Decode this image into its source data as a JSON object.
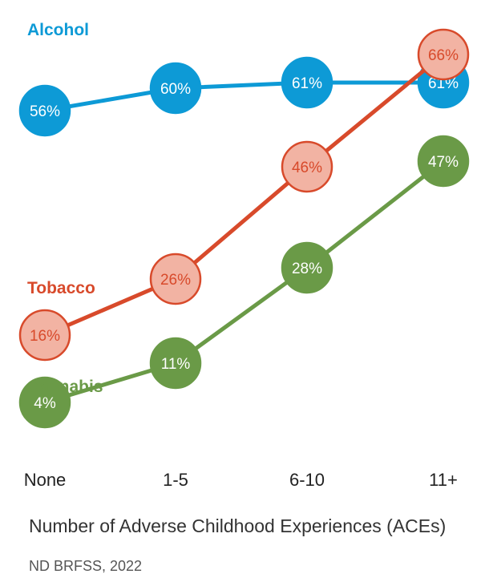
{
  "chart_data": {
    "type": "line",
    "categories": [
      "None",
      "1-5",
      "6-10",
      "11+"
    ],
    "xlabel": "Number of Adverse Childhood Experiences (ACEs)",
    "ylabel": "",
    "ylim": [
      0,
      70
    ],
    "grid": false,
    "legend": "inline",
    "series": [
      {
        "name": "Alcohol",
        "values": [
          56,
          60,
          61,
          61
        ],
        "labels": [
          "56%",
          "60%",
          "61%",
          "61%"
        ],
        "color": "#0d9ad6",
        "marker_fill": "#0d9ad6",
        "label_color": "#ffffff"
      },
      {
        "name": "Tobacco",
        "values": [
          16,
          26,
          46,
          66
        ],
        "labels": [
          "16%",
          "26%",
          "46%",
          "66%"
        ],
        "color": "#d84a2b",
        "marker_fill": "#f2b3a3",
        "label_color": "#d84a2b"
      },
      {
        "name": "Cannabis",
        "values": [
          4,
          11,
          28,
          47
        ],
        "labels": [
          "4%",
          "11%",
          "28%",
          "47%"
        ],
        "color": "#6a9a47",
        "marker_fill": "#6a9a47",
        "label_color": "#ffffff"
      }
    ]
  },
  "source": "ND BRFSS, 2022"
}
